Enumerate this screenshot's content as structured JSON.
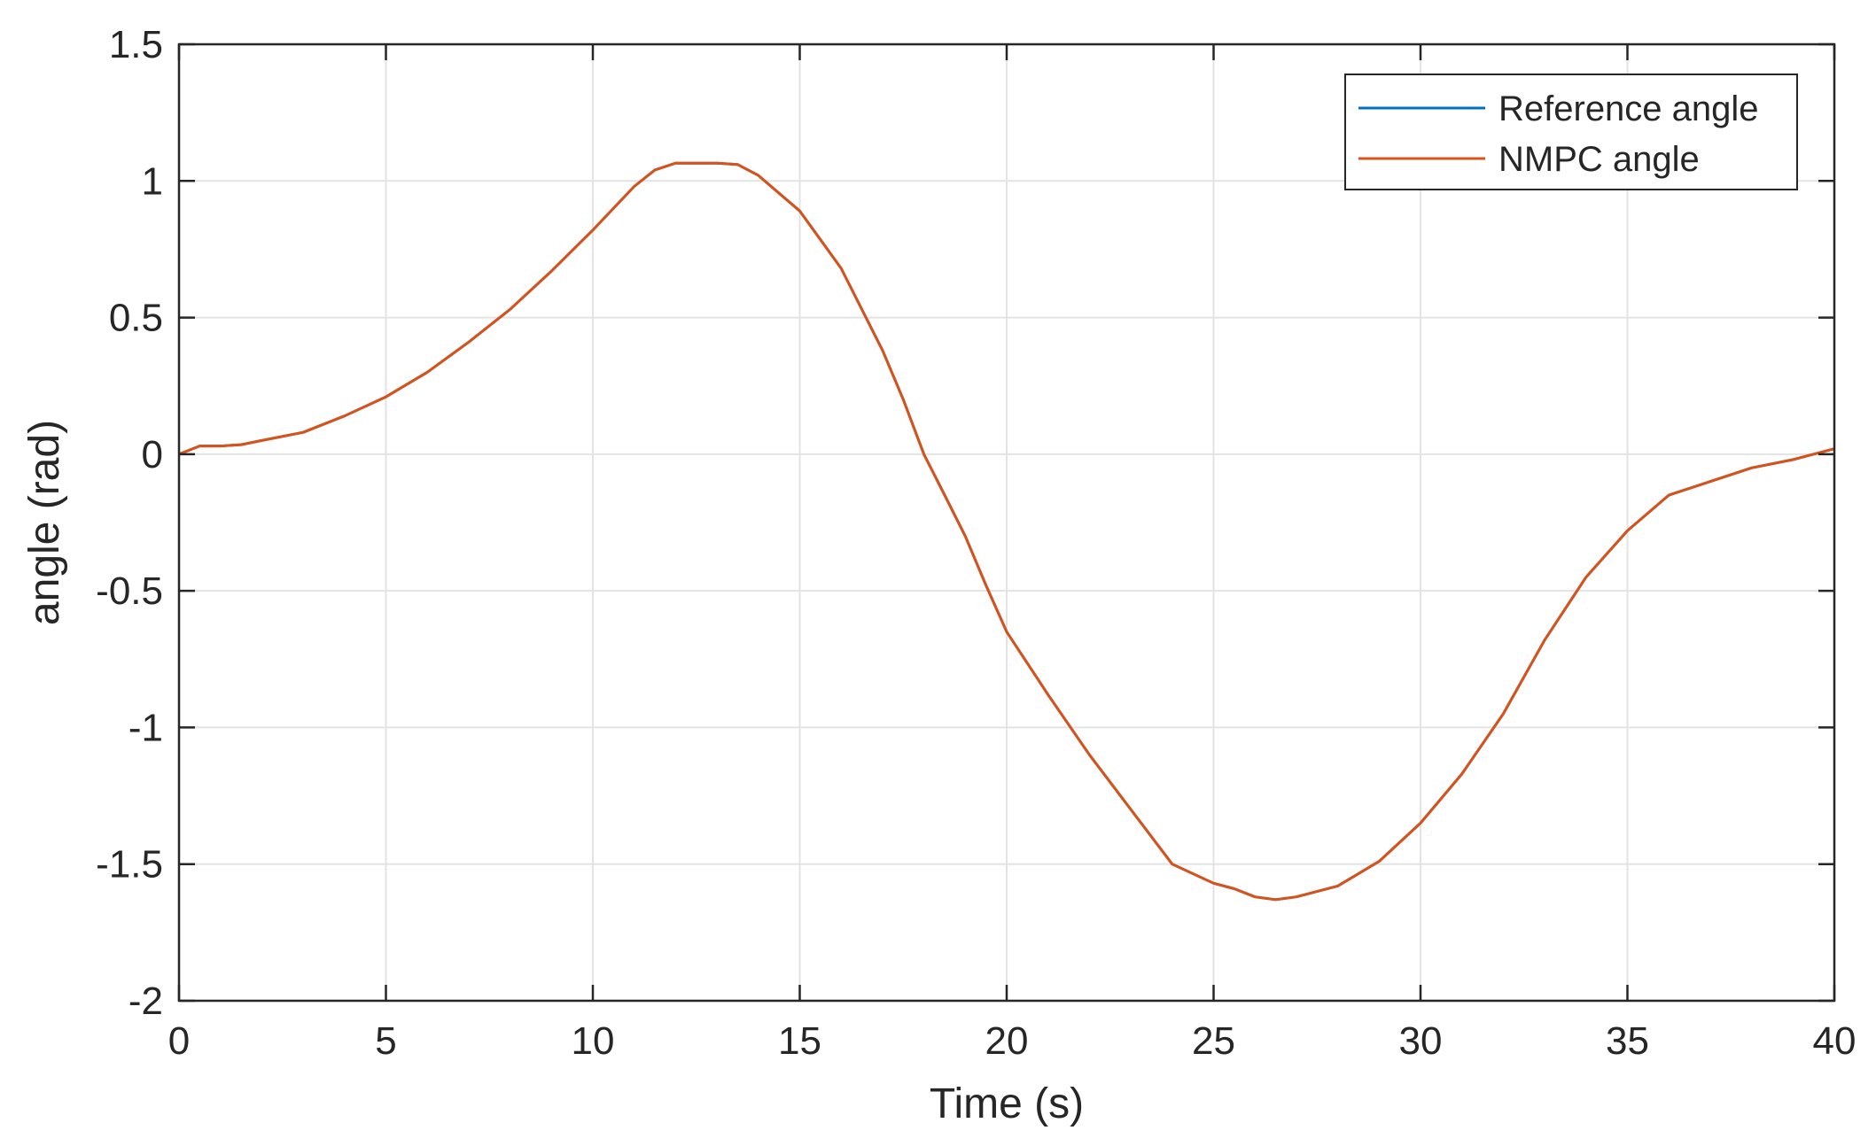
{
  "chart_data": {
    "type": "line",
    "title": "",
    "xlabel": "Time (s)",
    "ylabel": "angle (rad)",
    "xlim": [
      0,
      40
    ],
    "ylim": [
      -2,
      1.5
    ],
    "xticks": [
      0,
      5,
      10,
      15,
      20,
      25,
      30,
      35,
      40
    ],
    "xtick_labels": [
      "0",
      "5",
      "10",
      "15",
      "20",
      "25",
      "30",
      "35",
      "40"
    ],
    "yticks": [
      1.5,
      1,
      0.5,
      0,
      -0.5,
      -1,
      -1.5,
      -2
    ],
    "ytick_labels": [
      "1.5",
      "1",
      "0.5",
      "0",
      "-0.5",
      "-1",
      "-1.5",
      "-2"
    ],
    "grid": true,
    "legend_position": "top-right",
    "series": [
      {
        "name": "Reference angle",
        "color": "#0072BD",
        "x": [
          0,
          0.5,
          1,
          1.5,
          2,
          3,
          4,
          5,
          6,
          7,
          8,
          9,
          10,
          11,
          11.5,
          12,
          13,
          13.5,
          14,
          15,
          16,
          17,
          17.5,
          18,
          18.5,
          19,
          19.5,
          20,
          21,
          22,
          23,
          24,
          25,
          25.5,
          26,
          26.5,
          27,
          28,
          29,
          30,
          31,
          32,
          33,
          34,
          35,
          36,
          37,
          38,
          39,
          40
        ],
        "y": [
          0,
          0.03,
          0.03,
          0.035,
          0.05,
          0.08,
          0.14,
          0.21,
          0.3,
          0.41,
          0.53,
          0.67,
          0.82,
          0.98,
          1.04,
          1.065,
          1.065,
          1.06,
          1.02,
          0.89,
          0.68,
          0.38,
          0.2,
          0,
          -0.15,
          -0.3,
          -0.48,
          -0.65,
          -0.88,
          -1.1,
          -1.3,
          -1.5,
          -1.57,
          -1.59,
          -1.62,
          -1.63,
          -1.62,
          -1.58,
          -1.49,
          -1.35,
          -1.17,
          -0.95,
          -0.68,
          -0.45,
          -0.28,
          -0.15,
          -0.1,
          -0.05,
          -0.02,
          0.02
        ]
      },
      {
        "name": "NMPC angle",
        "color": "#D95319",
        "x": [
          0,
          0.5,
          1,
          1.5,
          2,
          3,
          4,
          5,
          6,
          7,
          8,
          9,
          10,
          11,
          11.5,
          12,
          13,
          13.5,
          14,
          15,
          16,
          17,
          17.5,
          18,
          18.5,
          19,
          19.5,
          20,
          21,
          22,
          23,
          24,
          25,
          25.5,
          26,
          26.5,
          27,
          28,
          29,
          30,
          31,
          32,
          33,
          34,
          35,
          36,
          37,
          38,
          39,
          40
        ],
        "y": [
          0,
          0.03,
          0.03,
          0.035,
          0.05,
          0.08,
          0.14,
          0.21,
          0.3,
          0.41,
          0.53,
          0.67,
          0.82,
          0.98,
          1.04,
          1.065,
          1.065,
          1.06,
          1.02,
          0.89,
          0.68,
          0.38,
          0.2,
          0,
          -0.15,
          -0.3,
          -0.48,
          -0.65,
          -0.88,
          -1.1,
          -1.3,
          -1.5,
          -1.57,
          -1.59,
          -1.62,
          -1.63,
          -1.62,
          -1.58,
          -1.49,
          -1.35,
          -1.17,
          -0.95,
          -0.68,
          -0.45,
          -0.28,
          -0.15,
          -0.1,
          -0.05,
          -0.02,
          0.02
        ]
      }
    ]
  }
}
